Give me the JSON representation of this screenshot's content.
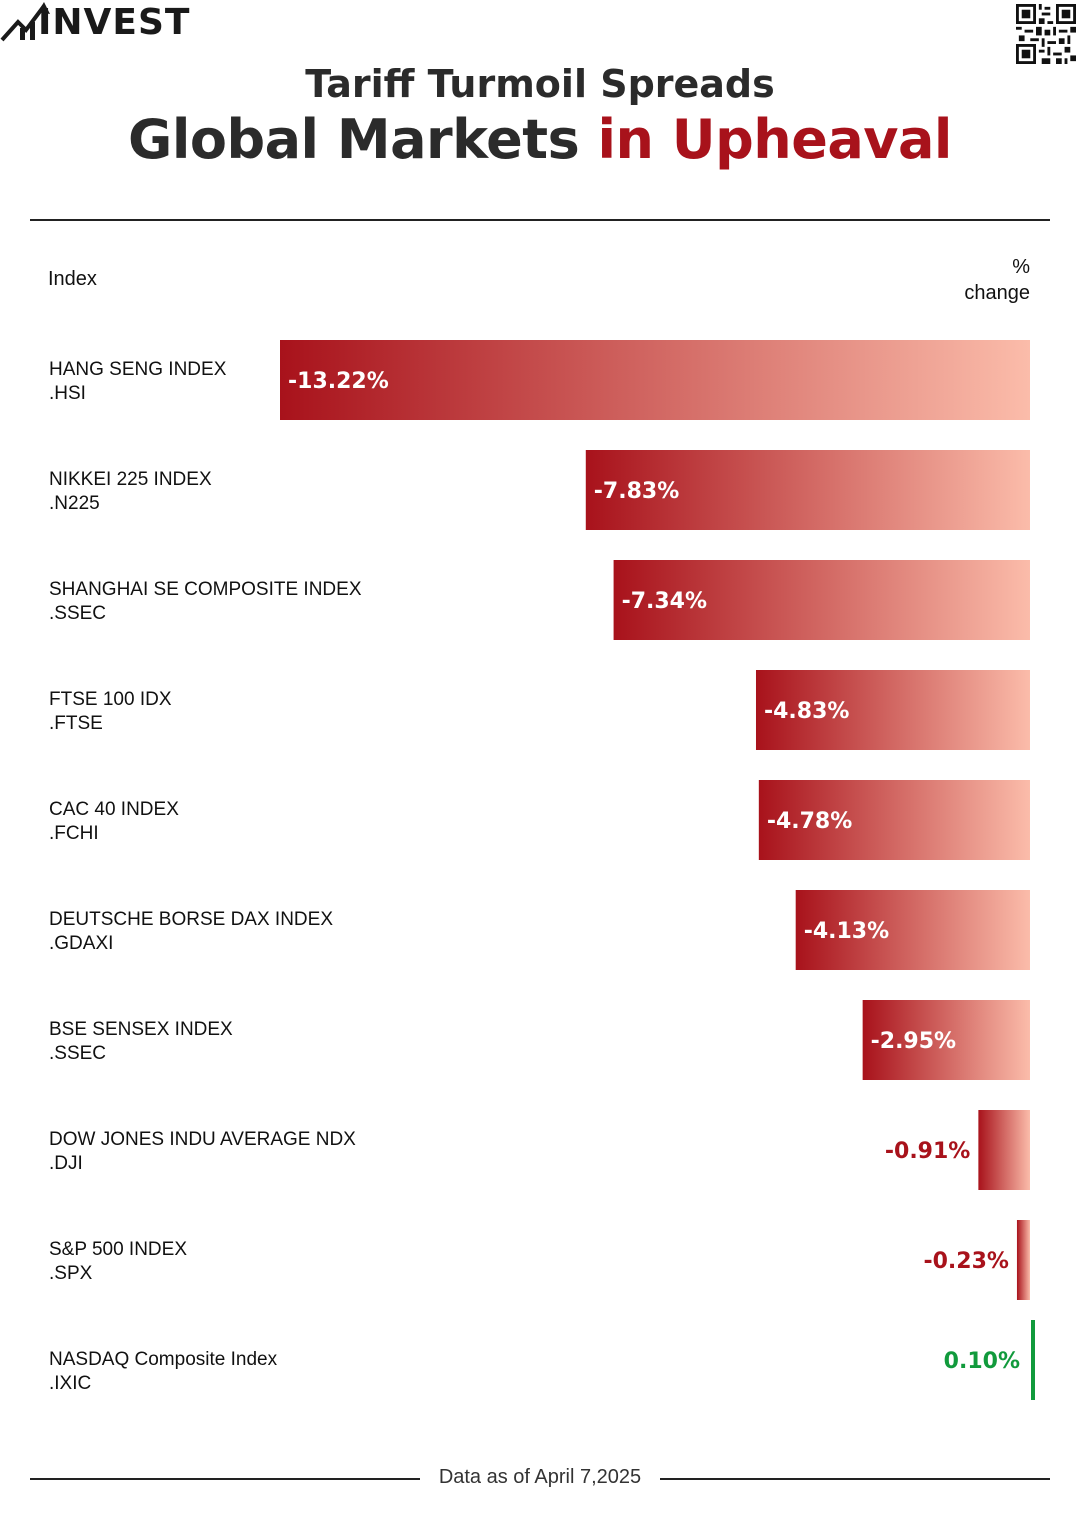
{
  "brand": {
    "logo_text": "INVEST"
  },
  "header": {
    "subtitle": "Tariff Turmoil Spreads",
    "title_main": "Global Markets",
    "title_accent": "in Upheaval"
  },
  "colors": {
    "accent": "#a8121b",
    "bar_dark": "#a8121b",
    "bar_light": "#fbbcaa",
    "positive": "#119a3c",
    "text": "#111111"
  },
  "columns": {
    "left": "Index",
    "right_line1": "%",
    "right_line2": "change"
  },
  "chart_data": {
    "type": "bar",
    "orientation": "horizontal",
    "categories": [
      {
        "name": "HANG SENG INDEX",
        "ticker": ".HSI"
      },
      {
        "name": "NIKKEI 225 INDEX",
        "ticker": ".N225"
      },
      {
        "name": "SHANGHAI SE COMPOSITE INDEX",
        "ticker": ".SSEC"
      },
      {
        "name": "FTSE 100 IDX",
        "ticker": ".FTSE"
      },
      {
        "name": "CAC 40 INDEX",
        "ticker": ".FCHI"
      },
      {
        "name": "DEUTSCHE BORSE DAX INDEX",
        "ticker": ".GDAXI"
      },
      {
        "name": "BSE SENSEX INDEX",
        "ticker": ".SSEC"
      },
      {
        "name": "DOW JONES INDU AVERAGE NDX",
        "ticker": ".DJI"
      },
      {
        "name": "S&P 500 INDEX",
        "ticker": ".SPX"
      },
      {
        "name": "NASDAQ Composite Index",
        "ticker": ".IXIC"
      }
    ],
    "values": [
      -13.22,
      -7.83,
      -7.34,
      -4.83,
      -4.78,
      -4.13,
      -2.95,
      -0.91,
      -0.23,
      0.1
    ],
    "value_labels": [
      "-13.22%",
      "-7.83%",
      "-7.34%",
      "-4.83%",
      "-4.78%",
      "-4.13%",
      "-2.95%",
      "-0.91%",
      "-0.23%",
      "0.10%"
    ],
    "unit": "%",
    "grid": false,
    "legend": "none"
  },
  "footer": {
    "note": "Data as of April 7,2025"
  }
}
